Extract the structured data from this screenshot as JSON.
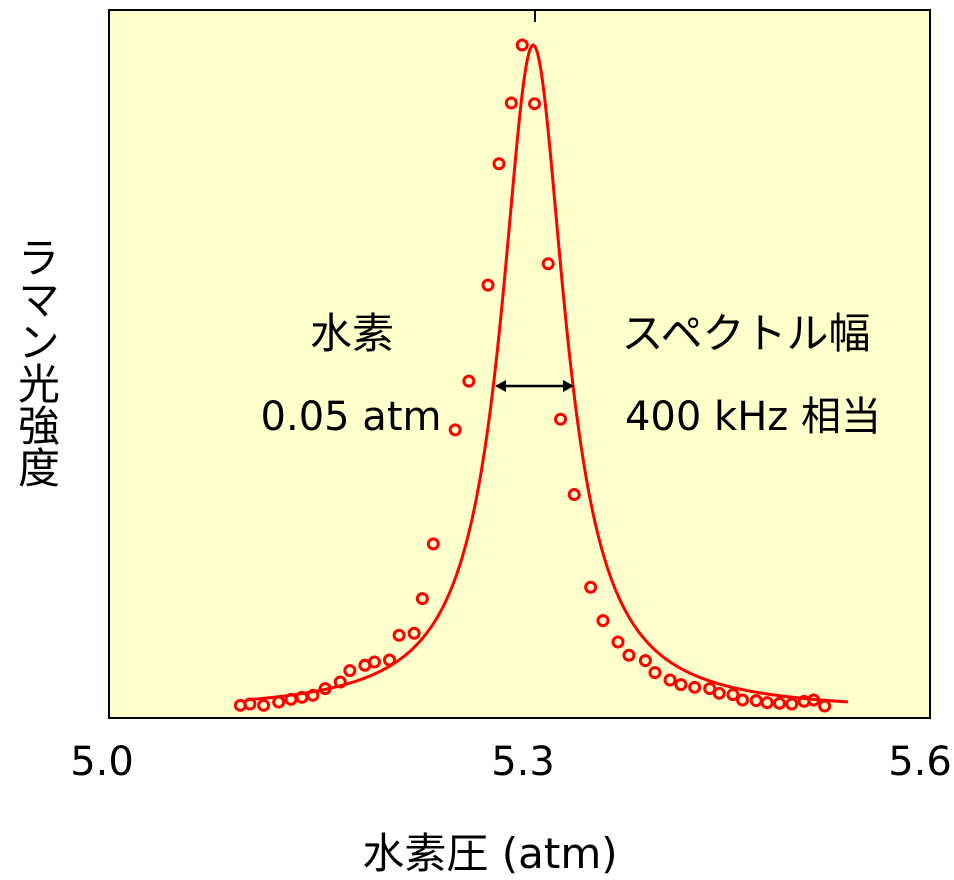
{
  "chart_data": {
    "type": "scatter",
    "xlabel": "水素圧 (atm)",
    "ylabel": "ラマン光強度",
    "xlim": [
      5.0,
      5.6
    ],
    "ylim": [
      0,
      1.0
    ],
    "x_ticks": [
      {
        "value": 5.0,
        "label": "5.0"
      },
      {
        "value": 5.3,
        "label": "5.3"
      },
      {
        "value": 5.6,
        "label": "5.6"
      }
    ],
    "grid": false,
    "background_color": "#ffffcc",
    "series_color": "#ff0000",
    "fit_curve": {
      "model": "lorentzian",
      "center": 5.31,
      "fwhm": 0.057,
      "amplitude": 1.0,
      "x_range": [
        5.1,
        5.54
      ]
    },
    "series": [
      {
        "x": [
          5.096,
          5.103,
          5.113,
          5.124,
          5.133,
          5.141,
          5.149,
          5.158,
          5.169,
          5.176,
          5.187,
          5.194,
          5.205,
          5.212,
          5.223,
          5.229,
          5.237,
          5.253,
          5.263,
          5.277,
          5.285,
          5.294,
          5.302,
          5.311,
          5.321,
          5.33,
          5.34,
          5.352,
          5.361,
          5.372,
          5.38,
          5.392,
          5.399,
          5.41,
          5.418,
          5.428,
          5.439,
          5.446,
          5.456,
          5.463,
          5.473,
          5.481,
          5.49,
          5.499,
          5.508,
          5.515,
          5.523
        ],
        "y": [
          0.01,
          0.012,
          0.01,
          0.015,
          0.019,
          0.022,
          0.025,
          0.035,
          0.045,
          0.062,
          0.07,
          0.075,
          0.078,
          0.115,
          0.118,
          0.17,
          0.252,
          0.423,
          0.496,
          0.64,
          0.822,
          0.913,
          1.0,
          0.912,
          0.672,
          0.439,
          0.326,
          0.187,
          0.137,
          0.105,
          0.085,
          0.077,
          0.059,
          0.048,
          0.041,
          0.037,
          0.035,
          0.028,
          0.026,
          0.018,
          0.017,
          0.014,
          0.013,
          0.012,
          0.016,
          0.018,
          0.009
        ]
      }
    ],
    "annotations": [
      {
        "text": "水素"
      },
      {
        "text": "0.05 atm"
      },
      {
        "text": "スペクトル幅"
      },
      {
        "text": "400 kHz 相当"
      }
    ]
  }
}
